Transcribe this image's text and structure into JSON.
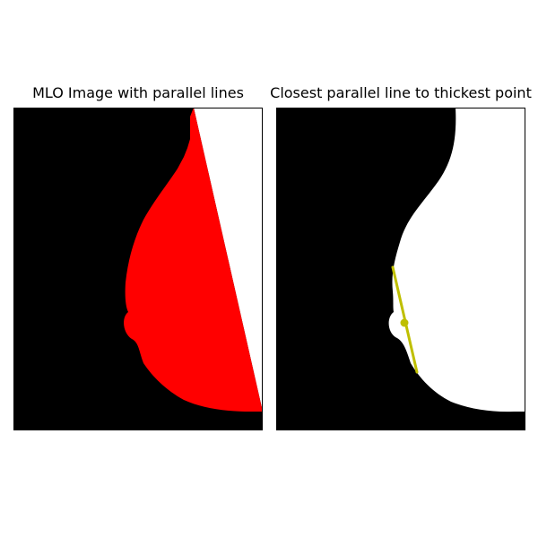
{
  "chart_data": [
    {
      "type": "image",
      "title": "MLO Image with parallel lines",
      "axes": "off",
      "colors": {
        "background": "#000000",
        "breast_tissue": "#ff0000",
        "pectoral_region": "#ffffff"
      }
    },
    {
      "type": "image",
      "title": "Closest parallel line to thickest point",
      "axes": "off",
      "colors": {
        "background": "#000000",
        "breast_mask": "#ffffff",
        "line": "#bfbf00",
        "marker": "#bfbf00"
      }
    }
  ]
}
